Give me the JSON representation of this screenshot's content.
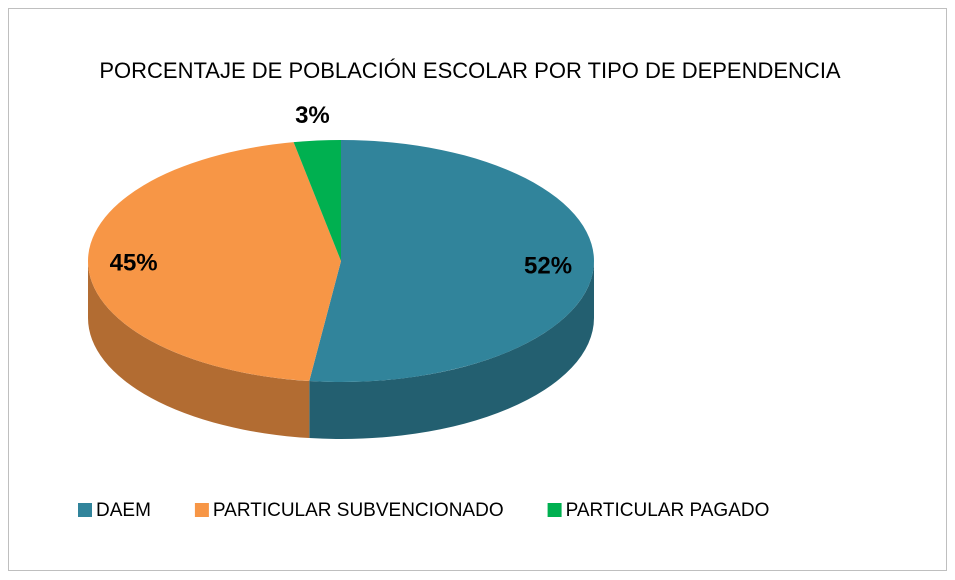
{
  "chart_data": {
    "type": "pie3d",
    "title": "PORCENTAJE DE POBLACIÓN ESCOLAR POR TIPO DE DEPENDENCIA",
    "categories": [
      "DAEM",
      "PARTICULAR SUBVENCIONADO",
      "PARTICULAR PAGADO"
    ],
    "values": [
      52,
      45,
      3
    ],
    "value_labels": [
      "52%",
      "45%",
      "3%"
    ],
    "colors": [
      "#31849b",
      "#f79646",
      "#00b050"
    ],
    "legend": "bottom"
  }
}
